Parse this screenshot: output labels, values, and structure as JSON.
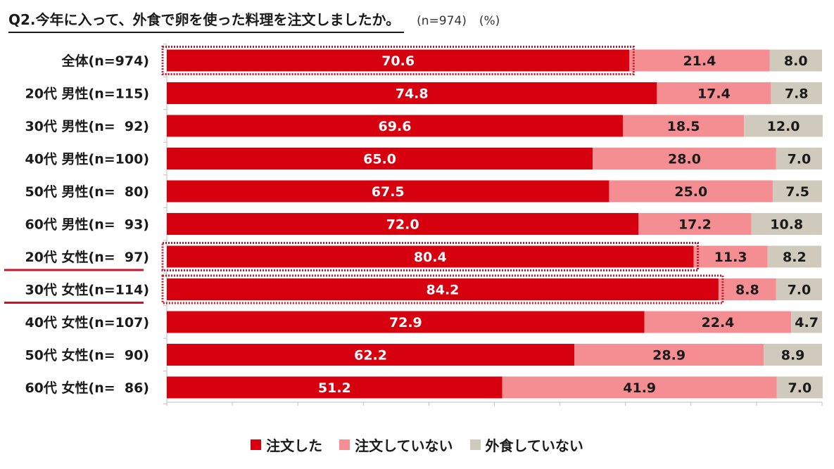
{
  "colors": {
    "ordered": "#d7000f",
    "not_ordered": "#f48e92",
    "no_dining_out": "#d0cabd",
    "highlight": "#c0182a"
  },
  "header": {
    "title": "Q2.今年に入って、外食で卵を使った料理を注文しましたか。",
    "sample": "(n=974)",
    "unit": "(%)"
  },
  "chart_data": {
    "type": "bar",
    "orientation": "horizontal",
    "stacked": true,
    "title": "Q2.今年に入って、外食で卵を使った料理を注文しましたか。",
    "unit": "%",
    "xlim": [
      0,
      100
    ],
    "categories": [
      "全体(n=974)",
      "20代 男性(n=115)",
      "30代 男性(n=  92)",
      "40代 男性(n=100)",
      "50代 男性(n=  80)",
      "60代 男性(n=  93)",
      "20代 女性(n=  97)",
      "30代 女性(n=114)",
      "40代 女性(n=107)",
      "50代 女性(n=  90)",
      "60代 女性(n=  86)"
    ],
    "series": [
      {
        "name": "注文した",
        "values": [
          70.6,
          74.8,
          69.6,
          65.0,
          67.5,
          72.0,
          80.4,
          84.2,
          72.9,
          62.2,
          51.2
        ]
      },
      {
        "name": "注文していない",
        "values": [
          21.4,
          17.4,
          18.5,
          28.0,
          25.0,
          17.2,
          11.3,
          8.8,
          22.4,
          28.9,
          41.9
        ]
      },
      {
        "name": "外食していない",
        "values": [
          8.0,
          7.8,
          12.0,
          7.0,
          7.5,
          10.8,
          8.2,
          7.0,
          4.7,
          8.9,
          7.0
        ]
      }
    ],
    "highlighted_rows": [
      0,
      6,
      7
    ],
    "underlined_labels": [
      6,
      7
    ],
    "legend_position": "bottom"
  }
}
